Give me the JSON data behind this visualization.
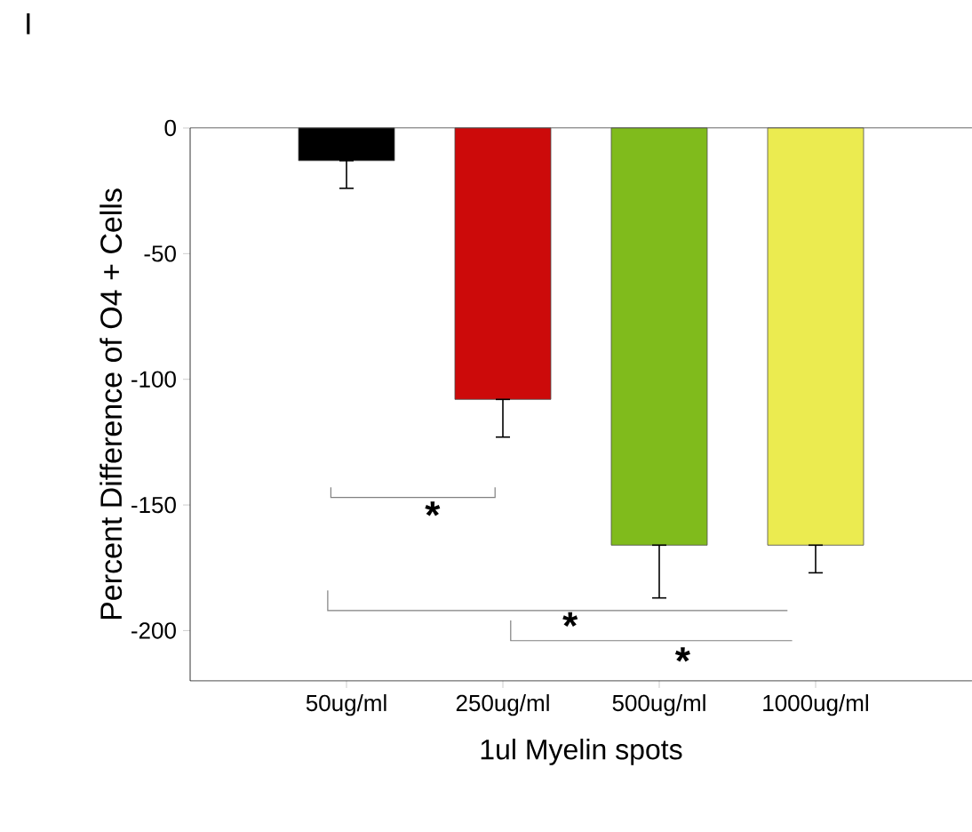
{
  "chart_data": {
    "type": "bar",
    "title": "I",
    "categories": [
      "50ug/ml",
      "250ug/ml",
      "500ug/ml",
      "1000ug/ml"
    ],
    "values": [
      -13,
      -108,
      -166,
      -166
    ],
    "colors": [
      "#000000",
      "#cc0a0a",
      "#80bb1c",
      "#ebeb50"
    ],
    "errors": [
      [
        -24,
        -13
      ],
      [
        -123,
        -108
      ],
      [
        -187,
        -166
      ],
      [
        -177,
        -166
      ]
    ],
    "xlabel": "1ul Myelin spots",
    "ylabel": "Percent Difference of O4 + Cells",
    "ylim": [
      -220,
      0
    ],
    "yticks": [
      0,
      -50,
      -100,
      -150,
      -200
    ],
    "annotations": [
      "*",
      "*",
      "*"
    ],
    "grid": false
  }
}
